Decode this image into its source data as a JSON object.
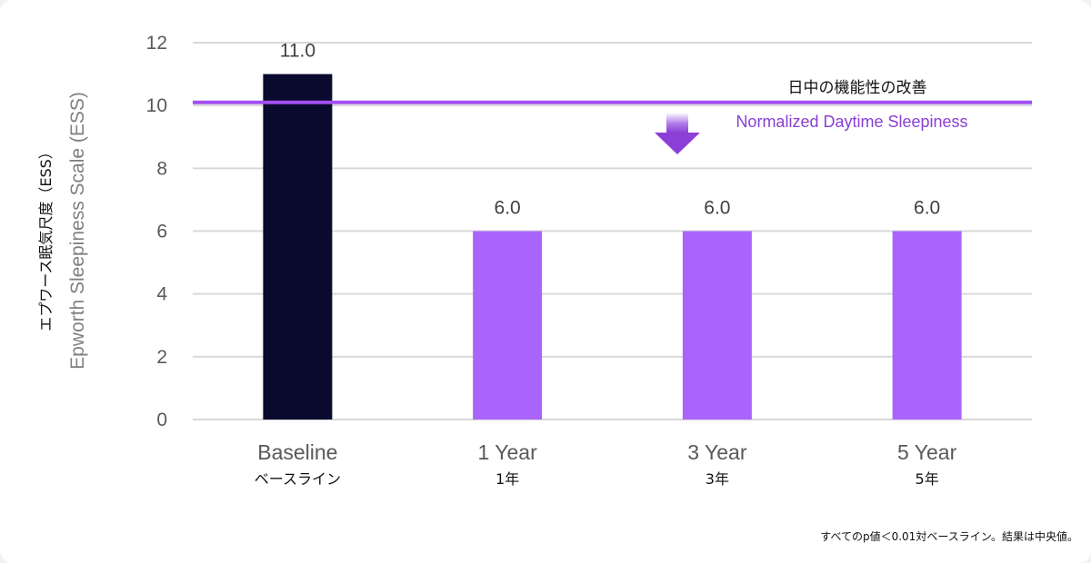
{
  "chart_data": {
    "type": "bar",
    "categories": [
      "Baseline",
      "1 Year",
      "3 Year",
      "5 Year"
    ],
    "categories_jp": [
      "ベースライン",
      "1年",
      "3年",
      "5年"
    ],
    "values": [
      11.0,
      6.0,
      6.0,
      6.0
    ],
    "value_labels": [
      "11.0",
      "6.0",
      "6.0",
      "6.0"
    ],
    "bar_colors": [
      "#0a0a2e",
      "#a965fb",
      "#a965fb",
      "#a965fb"
    ],
    "ylabel_jp": "エプワース眠気尺度（ESS）",
    "ylabel_en": "Epworth Sleepiness Scale (ESS)",
    "ylim": [
      0,
      12
    ],
    "yticks": [
      0,
      2,
      4,
      6,
      8,
      10,
      12
    ],
    "grid": true,
    "reference_line": {
      "value": 10.1,
      "label_jp": "日中の機能性の改善",
      "label_en": "Normalized Daytime Sleepiness",
      "color": "#a24ff0"
    }
  },
  "footnote": "すべてのp値＜0.01対ベースライン。結果は中央値。",
  "colors": {
    "grid": "#d9d9d9",
    "axis_text": "#595959",
    "arrow": "#8c3fd6"
  }
}
